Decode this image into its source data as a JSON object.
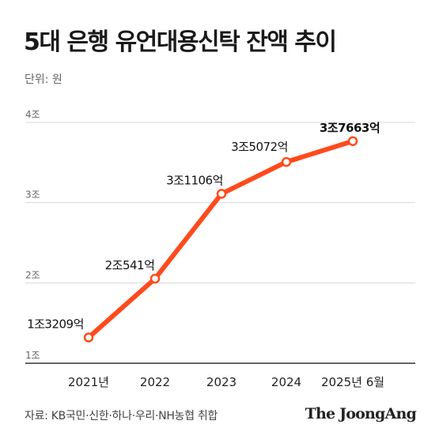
{
  "title": "5대 은행 유언대용신탁 잔액 추이",
  "unit_label": "단위: 원",
  "source": "자료: KB국민·신한·하나·우리·NH농협 취합",
  "brand": "The JoongAng",
  "colors": {
    "line": "#ff4a1c",
    "grid": "#d9d9d9",
    "axis": "#333333",
    "marker_fill": "#ffffff"
  },
  "chart_data": {
    "type": "line",
    "title": "5대 은행 유언대용신탁 잔액 추이",
    "xlabel": "",
    "ylabel": "",
    "categories": [
      "2021년",
      "2022",
      "2023",
      "2024",
      "2025년 6월"
    ],
    "y_tick_values": [
      1,
      2,
      3,
      4
    ],
    "y_tick_labels": [
      "1조",
      "2조",
      "3조",
      "4조"
    ],
    "ylim": [
      1,
      4.3
    ],
    "grid": true,
    "series": [
      {
        "values": [
          1.3209,
          2.0541,
          3.1106,
          3.5072,
          3.7663
        ],
        "labels": [
          "1조3209억",
          "2조541억",
          "3조1106억",
          "3조5072억",
          "3조7663억"
        ]
      }
    ]
  }
}
